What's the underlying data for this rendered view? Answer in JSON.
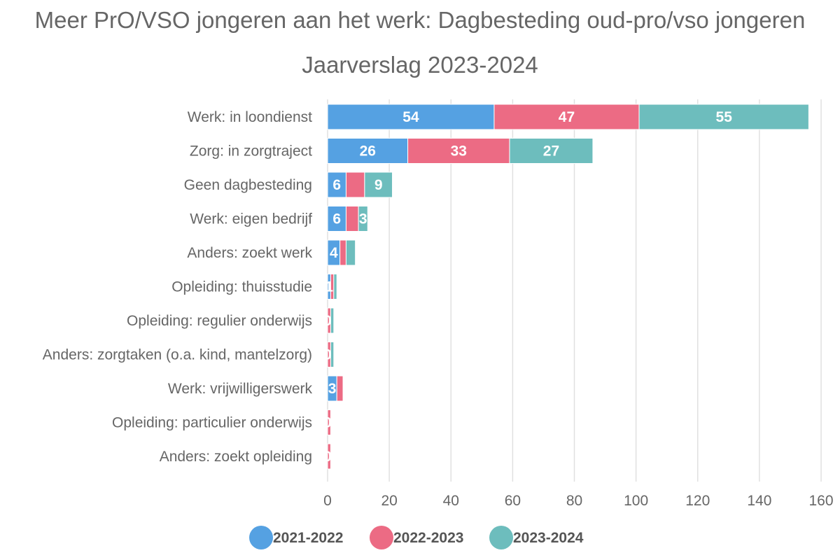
{
  "chart_data": {
    "type": "bar",
    "orientation": "horizontal",
    "stacked": true,
    "title": "Meer PrO/VSO jongeren aan het werk: Dagbesteding oud-pro/vso jongeren",
    "subtitle": "Jaarverslag 2023-2024",
    "categories": [
      "Werk: in loondienst",
      "Zorg: in zorgtraject",
      "Geen dagbesteding",
      "Werk: eigen bedrijf",
      "Anders: zoekt werk",
      "Opleiding: thuisstudie",
      "Opleiding: regulier onderwijs",
      "Anders: zorgtaken (o.a. kind, mantelzorg)",
      "Werk: vrijwilligerswerk",
      "Opleiding: particulier onderwijs",
      "Anders: zoekt opleiding"
    ],
    "series": [
      {
        "name": "2021-2022",
        "color": "#55a1e2",
        "values": [
          54,
          26,
          6,
          6,
          4,
          1,
          0,
          0,
          3,
          0,
          0
        ]
      },
      {
        "name": "2022-2023",
        "color": "#ec6b84",
        "values": [
          47,
          33,
          6,
          4,
          2,
          1,
          1,
          1,
          2,
          1,
          1
        ]
      },
      {
        "name": "2023-2024",
        "color": "#6dbdbd",
        "values": [
          55,
          27,
          9,
          3,
          3,
          1,
          1,
          1,
          0,
          0,
          0
        ]
      }
    ],
    "data_labels": [
      [
        "54",
        "26",
        "6",
        "6",
        "4",
        "1",
        "0",
        "0",
        "3",
        "0",
        "0"
      ],
      [
        "47",
        "33",
        "",
        "",
        "",
        "",
        "",
        "",
        "",
        "",
        ""
      ],
      [
        "55",
        "27",
        "9",
        "3",
        "",
        "",
        "",
        "",
        "",
        "",
        ""
      ]
    ],
    "xlim": [
      0,
      160
    ],
    "xticks": [
      0,
      20,
      40,
      60,
      80,
      100,
      120,
      140,
      160
    ],
    "grid": true,
    "legend_position": "bottom"
  }
}
